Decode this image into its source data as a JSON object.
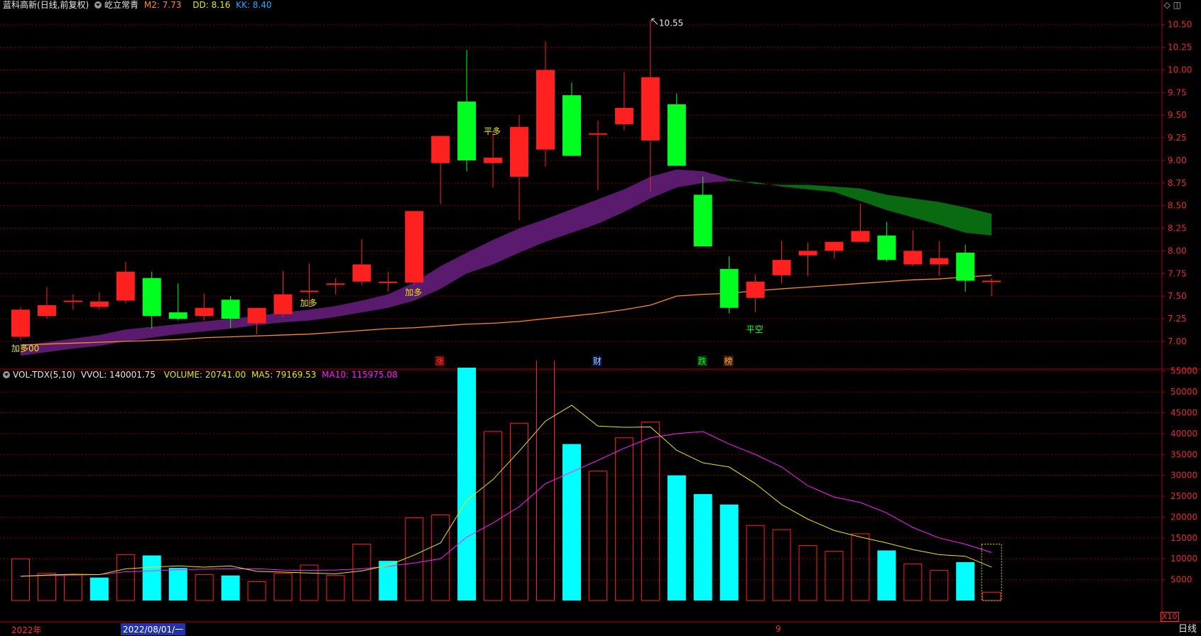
{
  "header": {
    "stock_name": "蓝科高新",
    "stock_mode": "(日线,前复权)",
    "indicator_name": "屹立常青",
    "m2_label": "M2: 7.73",
    "dd_label": "DD: 8.16",
    "kk_label": "KK: 8.40"
  },
  "vol_header": {
    "name": "VOL-TDX(5,10)",
    "vvol": "VVOL: 140001.75",
    "volume": "VOLUME: 20741.00",
    "ma5": "MA5: 79169.53",
    "ma10": "MA10: 115975.08"
  },
  "footer": {
    "year_label": "2022年",
    "date_label": "2022/08/01/一",
    "month_label": "9",
    "period_label": "日线",
    "x10_label": "X10"
  },
  "colors": {
    "up": "#ff2020",
    "down": "#00ff20",
    "ma5": "#e8e800",
    "ma10": "#ff20ff",
    "cloud_purple": "#5a1a6e",
    "cloud_green": "#0a6a12",
    "m2_line": "#ff8a20",
    "grid": "#7a0000"
  },
  "chart_data": [
    {
      "type": "candlestick",
      "title": "蓝科高新",
      "ylim": [
        6.85,
        10.6
      ],
      "y_ticks": [
        7.0,
        7.25,
        7.5,
        7.75,
        8.0,
        8.25,
        8.5,
        8.75,
        9.0,
        9.25,
        9.5,
        9.75,
        10.0,
        10.25,
        10.5
      ],
      "max_label": "10.55",
      "candles": [
        [
          7.05,
          7.35,
          7.01,
          7.38
        ],
        [
          7.28,
          7.4,
          7.25,
          7.6
        ],
        [
          7.45,
          7.45,
          7.35,
          7.52
        ],
        [
          7.38,
          7.44,
          7.35,
          7.54
        ],
        [
          7.45,
          7.77,
          7.42,
          7.88
        ],
        [
          7.7,
          7.28,
          7.14,
          7.77
        ],
        [
          7.32,
          7.25,
          7.23,
          7.64
        ],
        [
          7.28,
          7.37,
          7.23,
          7.53
        ],
        [
          7.46,
          7.25,
          7.15,
          7.5
        ],
        [
          7.2,
          7.37,
          7.08,
          7.37
        ],
        [
          7.3,
          7.52,
          7.27,
          7.78
        ],
        [
          7.56,
          7.56,
          7.38,
          7.86
        ],
        [
          7.64,
          7.64,
          7.52,
          7.7
        ],
        [
          7.66,
          7.85,
          7.62,
          8.13
        ],
        [
          7.66,
          7.66,
          7.55,
          7.77
        ],
        [
          7.65,
          8.44,
          7.62,
          8.44
        ],
        [
          8.97,
          9.27,
          8.52,
          9.27
        ],
        [
          9.65,
          9.0,
          8.88,
          10.22
        ],
        [
          8.97,
          9.03,
          8.7,
          9.32
        ],
        [
          8.82,
          9.37,
          8.34,
          9.5
        ],
        [
          9.12,
          10.0,
          8.93,
          10.32
        ],
        [
          9.72,
          9.05,
          9.05,
          9.86
        ],
        [
          9.3,
          9.3,
          8.67,
          9.44
        ],
        [
          9.4,
          9.58,
          9.33,
          9.98
        ],
        [
          9.22,
          9.92,
          8.65,
          10.55
        ],
        [
          9.62,
          8.94,
          8.94,
          9.74
        ],
        [
          8.62,
          8.05,
          8.05,
          8.82
        ],
        [
          7.8,
          7.37,
          7.31,
          7.94
        ],
        [
          7.48,
          7.66,
          7.32,
          7.74
        ],
        [
          7.73,
          7.9,
          7.64,
          8.11
        ],
        [
          7.95,
          8.0,
          7.72,
          8.09
        ],
        [
          8.0,
          8.1,
          7.92,
          8.1
        ],
        [
          8.1,
          8.22,
          8.1,
          8.52
        ],
        [
          8.17,
          7.9,
          7.88,
          8.32
        ],
        [
          7.85,
          8.0,
          7.83,
          8.23
        ],
        [
          7.85,
          7.92,
          7.72,
          8.11
        ],
        [
          7.98,
          7.67,
          7.55,
          8.07
        ],
        [
          7.66,
          7.67,
          7.5,
          7.7
        ]
      ],
      "m2_line": [
        6.96,
        6.97,
        6.98,
        6.99,
        7.0,
        7.01,
        7.02,
        7.04,
        7.05,
        7.06,
        7.07,
        7.08,
        7.1,
        7.12,
        7.14,
        7.15,
        7.17,
        7.19,
        7.2,
        7.22,
        7.25,
        7.28,
        7.31,
        7.35,
        7.4,
        7.5,
        7.52,
        7.53,
        7.56,
        7.58,
        7.6,
        7.62,
        7.64,
        7.66,
        7.68,
        7.69,
        7.71,
        7.73
      ],
      "cloud_upper": [
        6.95,
        6.99,
        7.03,
        7.07,
        7.13,
        7.16,
        7.19,
        7.22,
        7.25,
        7.28,
        7.32,
        7.35,
        7.39,
        7.45,
        7.52,
        7.65,
        7.83,
        7.98,
        8.12,
        8.25,
        8.35,
        8.46,
        8.57,
        8.68,
        8.82,
        8.9,
        8.88,
        8.8,
        8.74,
        8.73,
        8.73,
        8.71,
        8.69,
        8.62,
        8.58,
        8.54,
        8.48,
        8.41
      ],
      "cloud_lower": [
        6.84,
        6.88,
        6.92,
        6.95,
        7.0,
        7.04,
        7.08,
        7.11,
        7.14,
        7.18,
        7.21,
        7.23,
        7.27,
        7.32,
        7.37,
        7.45,
        7.58,
        7.75,
        7.85,
        7.98,
        8.1,
        8.2,
        8.3,
        8.43,
        8.58,
        8.7,
        8.75,
        8.77,
        8.76,
        8.71,
        8.68,
        8.65,
        8.55,
        8.45,
        8.37,
        8.29,
        8.2,
        8.17
      ],
      "signals": [
        {
          "index": 0,
          "text": "加多00",
          "color": "#e8e800",
          "price": 7.0
        },
        {
          "index": 11,
          "text": "加多",
          "color": "#e8e800",
          "price": 7.5
        },
        {
          "index": 15,
          "text": "加多",
          "color": "#e8e800",
          "price": 7.62
        },
        {
          "index": 18,
          "text": "平多",
          "color": "#e8e800",
          "price": 9.4
        },
        {
          "index": 28,
          "text": "平空",
          "color": "#00ff20",
          "price": 7.21
        }
      ],
      "bottom_markers": [
        {
          "index": 16,
          "text": "涨",
          "color": "#ff4040",
          "bg": "#5a0000"
        },
        {
          "index": 22,
          "text": "财",
          "color": "#b0d0ff",
          "bg": "#001040"
        },
        {
          "index": 26,
          "text": "跌",
          "color": "#00ff20",
          "bg": "#003000"
        },
        {
          "index": 27,
          "text": "榜",
          "color": "#ffaa40",
          "bg": "#402000"
        }
      ]
    },
    {
      "type": "bar",
      "title": "VOL-TDX(5,10)",
      "ylim": [
        0,
        57500
      ],
      "y_ticks": [
        5000,
        10000,
        15000,
        20000,
        25000,
        30000,
        35000,
        40000,
        45000,
        50000,
        55000
      ],
      "volumes": [
        10000,
        6500,
        6200,
        5500,
        11000,
        10800,
        7800,
        6200,
        6000,
        4500,
        6500,
        8500,
        6000,
        13500,
        9500,
        19800,
        20500,
        55800,
        40500,
        42500,
        58200,
        37500,
        31000,
        39000,
        42800,
        30000,
        25500,
        23000,
        18000,
        17000,
        13200,
        11800,
        16000,
        12000,
        8800,
        7200,
        9200,
        2000
      ],
      "up_flags": [
        1,
        1,
        1,
        0,
        1,
        0,
        0,
        1,
        0,
        1,
        1,
        1,
        1,
        1,
        0,
        1,
        1,
        0,
        1,
        1,
        1,
        0,
        1,
        1,
        1,
        0,
        0,
        0,
        1,
        1,
        1,
        1,
        1,
        0,
        1,
        1,
        0,
        1
      ],
      "ma5": [
        5800,
        6100,
        6300,
        6200,
        7600,
        8000,
        8300,
        8000,
        8300,
        7000,
        6800,
        6600,
        6400,
        7100,
        8400,
        10900,
        13800,
        24000,
        29000,
        35800,
        43000,
        46800,
        41800,
        41500,
        41600,
        36000,
        33000,
        32000,
        28000,
        23000,
        19500,
        16800,
        15200,
        13800,
        12200,
        11000,
        10600,
        8000
      ],
      "ma10": [
        5800,
        6000,
        6100,
        6200,
        6900,
        7100,
        7400,
        7500,
        7600,
        7600,
        7300,
        7200,
        7300,
        7600,
        8200,
        9000,
        10000,
        15200,
        18600,
        22500,
        28000,
        30800,
        33600,
        36500,
        39000,
        40000,
        40500,
        37500,
        35000,
        32000,
        27500,
        24800,
        23500,
        21000,
        17500,
        15000,
        13500,
        11500
      ]
    }
  ]
}
